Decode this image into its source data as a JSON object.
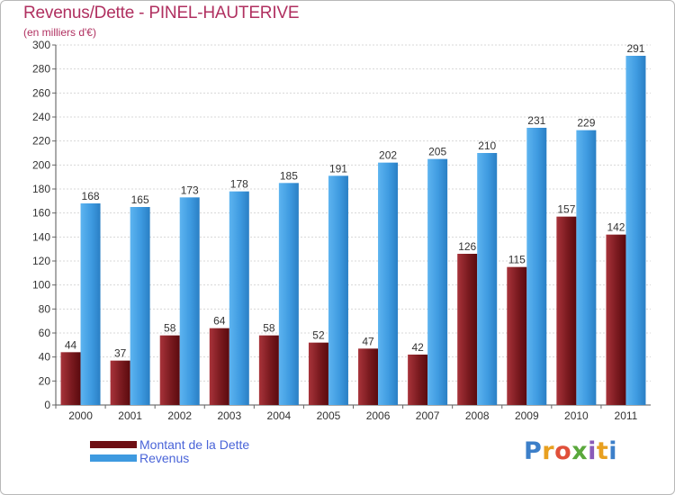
{
  "colors": {
    "dette": "#6e0f14",
    "revenus": "#3e9ae0",
    "title": "#b03060",
    "legend_text": "#4a64d8"
  },
  "logo": {
    "letters": [
      {
        "ch": "P",
        "color": "#3c7fc9"
      },
      {
        "ch": "r",
        "color": "#e8a020"
      },
      {
        "ch": "o",
        "color": "#e0503a"
      },
      {
        "ch": "x",
        "color": "#5aa83c"
      },
      {
        "ch": "i",
        "color": "#8a5ab8"
      },
      {
        "ch": "t",
        "color": "#e8a020"
      },
      {
        "ch": "i",
        "color": "#3c7fc9"
      }
    ]
  },
  "chart_data": {
    "type": "bar",
    "title": "Revenus/Dette - PINEL-HAUTERIVE",
    "subtitle": "(en milliers d'€)",
    "xlabel": "",
    "ylabel": "",
    "ylim": [
      0,
      300
    ],
    "ytick_step": 20,
    "grid": true,
    "categories": [
      "2000",
      "2001",
      "2002",
      "2003",
      "2004",
      "2005",
      "2006",
      "2007",
      "2008",
      "2009",
      "2010",
      "2011"
    ],
    "series": [
      {
        "name": "Montant de la Dette",
        "values": [
          44,
          37,
          58,
          64,
          58,
          52,
          47,
          42,
          126,
          115,
          157,
          142
        ]
      },
      {
        "name": "Revenus",
        "values": [
          168,
          165,
          173,
          178,
          185,
          191,
          202,
          205,
          210,
          231,
          229,
          291
        ]
      }
    ]
  }
}
